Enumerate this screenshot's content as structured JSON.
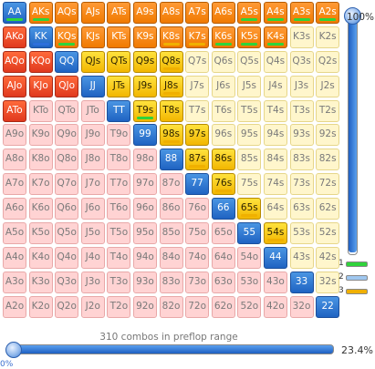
{
  "ranks": [
    "A",
    "K",
    "Q",
    "J",
    "T",
    "9",
    "8",
    "7",
    "6",
    "5",
    "4",
    "3",
    "2"
  ],
  "selected": [
    "AA",
    "AKs",
    "AQs",
    "AJs",
    "ATs",
    "A9s",
    "A8s",
    "A7s",
    "A6s",
    "A5s",
    "A4s",
    "A3s",
    "A2s",
    "AKo",
    "KK",
    "KQs",
    "KJs",
    "KTs",
    "K9s",
    "K8s",
    "K7s",
    "K6s",
    "K5s",
    "K4s",
    "AQo",
    "KQo",
    "QQ",
    "QJs",
    "QTs",
    "Q9s",
    "Q8s",
    "AJo",
    "KJo",
    "QJo",
    "JJ",
    "JTs",
    "J9s",
    "J8s",
    "ATo",
    "TT",
    "T9s",
    "T8s",
    "99",
    "98s",
    "97s",
    "88",
    "87s",
    "86s",
    "77",
    "76s",
    "66",
    "65s",
    "55",
    "54s",
    "44",
    "33",
    "22"
  ],
  "hot_suited": [
    "AKs",
    "AQs",
    "AJs",
    "ATs",
    "A9s",
    "A8s",
    "A7s",
    "A6s",
    "A5s",
    "A4s",
    "A3s",
    "A2s",
    "KQs",
    "KJs",
    "KTs",
    "K9s",
    "K8s",
    "K7s",
    "K6s",
    "K5s",
    "K4s"
  ],
  "underlines": {
    "green": [
      "AA",
      "AKs",
      "A5s",
      "A4s",
      "A3s",
      "A2s",
      "KQs",
      "K8s",
      "K7s",
      "K6s",
      "K5s",
      "K4s",
      "Q8s",
      "J8s",
      "98s",
      "65s",
      "54s",
      "T9s"
    ],
    "blue": [
      "KK"
    ],
    "yellow": [
      "K8s",
      "K7s",
      "Q8s",
      "J8s",
      "87s",
      "76s",
      "98s",
      "65s",
      "54s"
    ]
  },
  "colors": {
    "pair_on": "#1f63c2",
    "suited_on": "#f2b600",
    "offsuit_on": "#e0391e",
    "legend_1": "#2fd33b",
    "legend_2": "#9fc7ef",
    "legend_3": "#f0b000"
  },
  "vslider": {
    "label": "100%",
    "value": 1.0
  },
  "legend": [
    {
      "num": "1",
      "color_key": "legend_1"
    },
    {
      "num": "2",
      "color_key": "legend_2"
    },
    {
      "num": "3",
      "color_key": "legend_3"
    }
  ],
  "combos_text": "310 combos in preflop range",
  "percent_text": "23.4%",
  "bottom_left_text": "0%",
  "hslider": {
    "value": 0.0
  }
}
